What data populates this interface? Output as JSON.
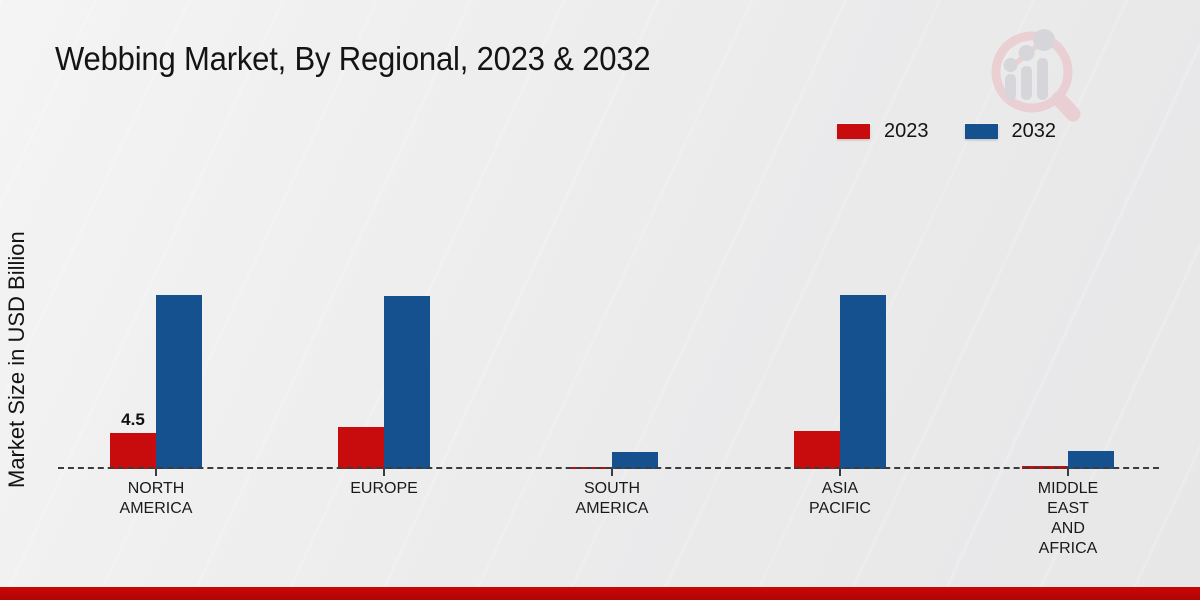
{
  "title": "Webbing Market, By Regional, 2023 & 2032",
  "watermark_name": "market-research-future-logo",
  "colors": {
    "series_2023": "#c80b0d",
    "series_2032": "#15508f",
    "footer_band": "#c00606",
    "background": "#ededee",
    "axis_line": "#3c3c3c",
    "text": "#1a1a1a",
    "watermark_pink": "#eacdd1",
    "watermark_gray": "#d5d5d9"
  },
  "chart_data": {
    "type": "bar",
    "title": "Webbing Market, By Regional, 2023 & 2032",
    "xlabel": "",
    "ylabel": "Market Size in USD Billion",
    "categories": [
      "North America",
      "Europe",
      "South America",
      "Asia Pacific",
      "Middle East and Africa"
    ],
    "tick_labels": [
      "NORTH\nAMERICA",
      "EUROPE",
      "SOUTH\nAMERICA",
      "ASIA\nPACIFIC",
      "MIDDLE\nEAST\nAND\nAFRICA"
    ],
    "series": [
      {
        "name": "2023",
        "color": "#c80b0d",
        "values": [
          4.5,
          5.2,
          0.3,
          4.8,
          0.4
        ]
      },
      {
        "name": "2032",
        "color": "#15508f",
        "values": [
          21.8,
          21.6,
          2.1,
          21.8,
          2.3
        ]
      }
    ],
    "data_labels": [
      {
        "series_index": 0,
        "category_index": 0,
        "text": "4.5"
      }
    ],
    "ylim": [
      0,
      24
    ],
    "grid": false,
    "axis_style": "dashed-baseline-only",
    "legend_position": "top-right"
  }
}
